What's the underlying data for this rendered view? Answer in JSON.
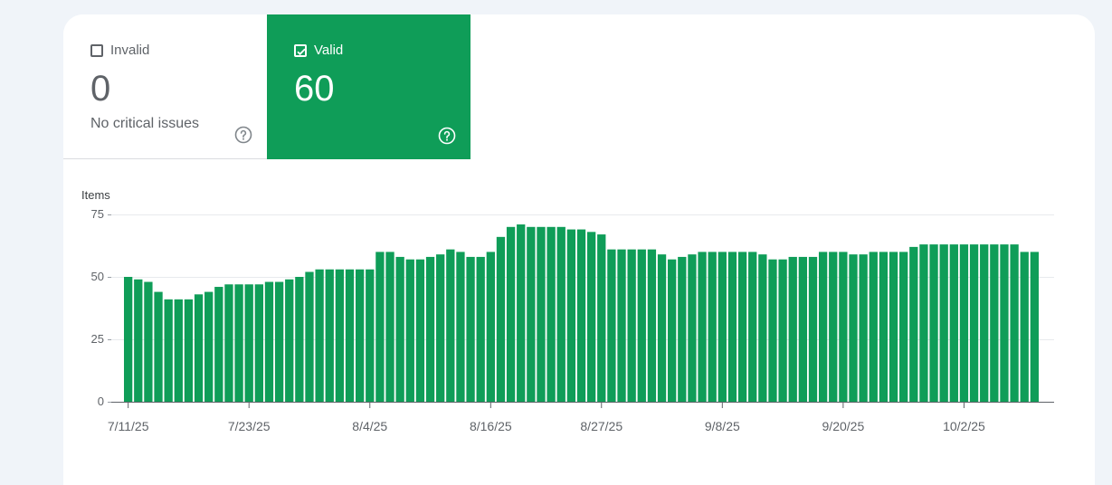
{
  "tiles": {
    "invalid": {
      "label": "Invalid",
      "value": "0",
      "subtitle": "No critical issues",
      "checked": false
    },
    "valid": {
      "label": "Valid",
      "value": "60",
      "checked": true
    }
  },
  "colors": {
    "bar": "#0f9d58",
    "valid_tile": "#0f9d58",
    "page_bg": "#f0f4f9"
  },
  "chart_data": {
    "type": "bar",
    "ylabel": "Items",
    "ylim": [
      0,
      75
    ],
    "yticks": [
      0,
      25,
      50,
      75
    ],
    "xtick_labels": [
      "7/11/25",
      "7/23/25",
      "8/4/25",
      "8/16/25",
      "8/27/25",
      "9/8/25",
      "9/20/25",
      "10/2/25"
    ],
    "xtick_indices": [
      0,
      12,
      24,
      36,
      47,
      59,
      71,
      83
    ],
    "grid": true,
    "series": [
      {
        "values": [
          50,
          49,
          48,
          44,
          41,
          41,
          41,
          43,
          44,
          46,
          47,
          47,
          47,
          47,
          48,
          48,
          49,
          50,
          52,
          53,
          53,
          53,
          53,
          53,
          53,
          60,
          60,
          58,
          57,
          57,
          58,
          59,
          61,
          60,
          58,
          58,
          60,
          66,
          70,
          71,
          70,
          70,
          70,
          70,
          69,
          69,
          68,
          67,
          61,
          61,
          61,
          61,
          61,
          59,
          57,
          58,
          59,
          60,
          60,
          60,
          60,
          60,
          60,
          59,
          57,
          57,
          58,
          58,
          58,
          60,
          60,
          60,
          59,
          59,
          60,
          60,
          60,
          60,
          62,
          63,
          63,
          63,
          63,
          63,
          63,
          63,
          63,
          63,
          63,
          60,
          60
        ]
      }
    ]
  }
}
